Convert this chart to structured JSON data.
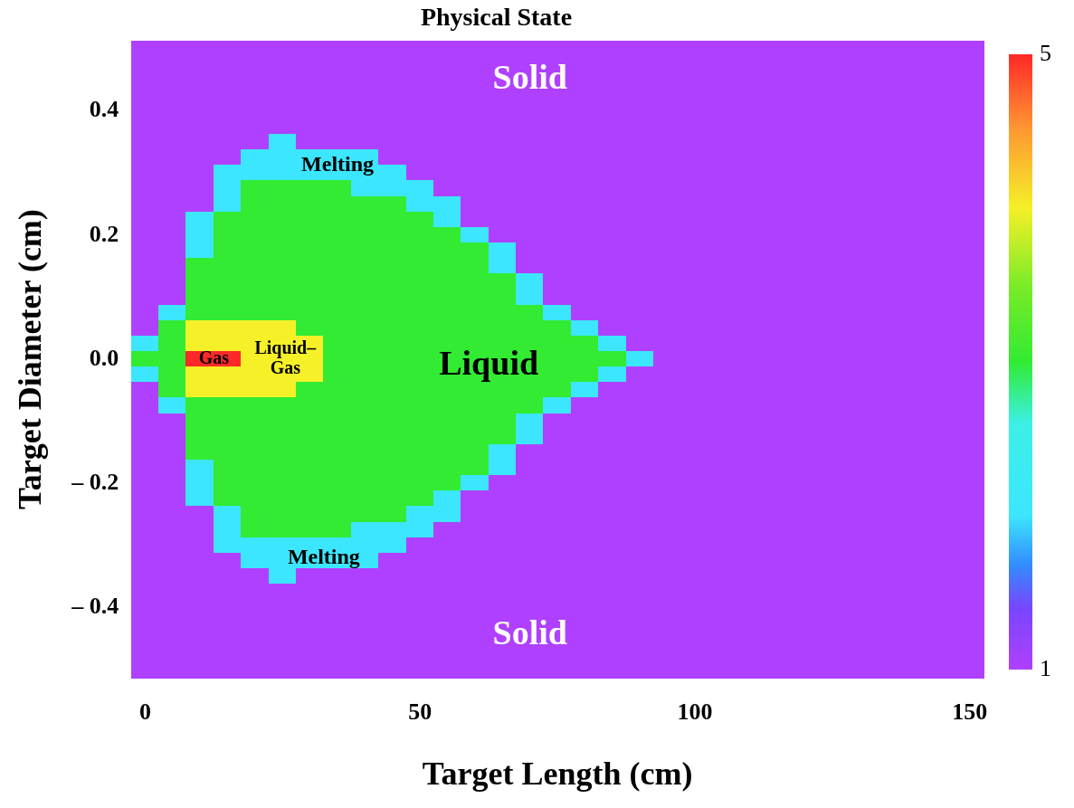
{
  "chart_data": {
    "type": "heatmap",
    "title": "Physical State",
    "xlabel": "Target Length (cm)",
    "ylabel": "Target Diameter (cm)",
    "categories": [
      "0",
      null,
      null,
      null,
      null,
      null,
      null,
      null,
      null,
      null,
      "50",
      null,
      null,
      null,
      null,
      null,
      null,
      null,
      null,
      null,
      "100",
      null,
      null,
      null,
      null,
      null,
      null,
      null,
      null,
      null,
      "150"
    ],
    "y_categories": [
      null,
      null,
      null,
      null,
      "0.4",
      null,
      null,
      null,
      null,
      null,
      null,
      null,
      "0.2",
      null,
      null,
      null,
      null,
      null,
      null,
      null,
      "0.0",
      null,
      null,
      null,
      null,
      null,
      null,
      null,
      "– 0.2",
      null,
      null,
      null,
      null,
      null,
      null,
      null,
      "– 0.4",
      null,
      null,
      null,
      null
    ],
    "clim": [
      1,
      5
    ],
    "cticks": [
      1,
      5
    ],
    "cells": [
      [
        1,
        1,
        1,
        1,
        1,
        1,
        1,
        1,
        1,
        1,
        1,
        1,
        1,
        1,
        1,
        1,
        1,
        1,
        1,
        1,
        1,
        1,
        1,
        1,
        1,
        1,
        1,
        1,
        1,
        1,
        1
      ],
      [
        1,
        1,
        1,
        1,
        1,
        1,
        1,
        1,
        1,
        1,
        1,
        1,
        1,
        1,
        1,
        1,
        1,
        1,
        1,
        1,
        1,
        1,
        1,
        1,
        1,
        1,
        1,
        1,
        1,
        1,
        1
      ],
      [
        1,
        1,
        1,
        1,
        1,
        1,
        1,
        1,
        1,
        1,
        1,
        1,
        1,
        1,
        1,
        1,
        1,
        1,
        1,
        1,
        1,
        1,
        1,
        1,
        1,
        1,
        1,
        1,
        1,
        1,
        1
      ],
      [
        1,
        1,
        1,
        1,
        1,
        1,
        1,
        1,
        1,
        1,
        1,
        1,
        1,
        1,
        1,
        1,
        1,
        1,
        1,
        1,
        1,
        1,
        1,
        1,
        1,
        1,
        1,
        1,
        1,
        1,
        1
      ],
      [
        1,
        1,
        1,
        1,
        1,
        1,
        1,
        1,
        1,
        1,
        1,
        1,
        1,
        1,
        1,
        1,
        1,
        1,
        1,
        1,
        1,
        1,
        1,
        1,
        1,
        1,
        1,
        1,
        1,
        1,
        1
      ],
      [
        1,
        1,
        1,
        1,
        1,
        1,
        1,
        1,
        1,
        1,
        1,
        1,
        1,
        1,
        1,
        1,
        1,
        1,
        1,
        1,
        1,
        1,
        1,
        1,
        1,
        1,
        1,
        1,
        1,
        1,
        1
      ],
      [
        1,
        1,
        1,
        1,
        1,
        2,
        1,
        1,
        1,
        1,
        1,
        1,
        1,
        1,
        1,
        1,
        1,
        1,
        1,
        1,
        1,
        1,
        1,
        1,
        1,
        1,
        1,
        1,
        1,
        1,
        1
      ],
      [
        1,
        1,
        1,
        1,
        2,
        2,
        2,
        2,
        2,
        1,
        1,
        1,
        1,
        1,
        1,
        1,
        1,
        1,
        1,
        1,
        1,
        1,
        1,
        1,
        1,
        1,
        1,
        1,
        1,
        1,
        1
      ],
      [
        1,
        1,
        1,
        2,
        2,
        2,
        2,
        2,
        2,
        2,
        1,
        1,
        1,
        1,
        1,
        1,
        1,
        1,
        1,
        1,
        1,
        1,
        1,
        1,
        1,
        1,
        1,
        1,
        1,
        1,
        1
      ],
      [
        1,
        1,
        1,
        2,
        3,
        3,
        3,
        3,
        2,
        2,
        2,
        1,
        1,
        1,
        1,
        1,
        1,
        1,
        1,
        1,
        1,
        1,
        1,
        1,
        1,
        1,
        1,
        1,
        1,
        1,
        1
      ],
      [
        1,
        1,
        1,
        2,
        3,
        3,
        3,
        3,
        3,
        3,
        2,
        2,
        1,
        1,
        1,
        1,
        1,
        1,
        1,
        1,
        1,
        1,
        1,
        1,
        1,
        1,
        1,
        1,
        1,
        1,
        1
      ],
      [
        1,
        1,
        2,
        3,
        3,
        3,
        3,
        3,
        3,
        3,
        3,
        2,
        1,
        1,
        1,
        1,
        1,
        1,
        1,
        1,
        1,
        1,
        1,
        1,
        1,
        1,
        1,
        1,
        1,
        1,
        1
      ],
      [
        1,
        1,
        2,
        3,
        3,
        3,
        3,
        3,
        3,
        3,
        3,
        3,
        2,
        1,
        1,
        1,
        1,
        1,
        1,
        1,
        1,
        1,
        1,
        1,
        1,
        1,
        1,
        1,
        1,
        1,
        1
      ],
      [
        1,
        1,
        2,
        3,
        3,
        3,
        3,
        3,
        3,
        3,
        3,
        3,
        3,
        2,
        1,
        1,
        1,
        1,
        1,
        1,
        1,
        1,
        1,
        1,
        1,
        1,
        1,
        1,
        1,
        1,
        1
      ],
      [
        1,
        1,
        3,
        3,
        3,
        3,
        3,
        3,
        3,
        3,
        3,
        3,
        3,
        2,
        1,
        1,
        1,
        1,
        1,
        1,
        1,
        1,
        1,
        1,
        1,
        1,
        1,
        1,
        1,
        1,
        1
      ],
      [
        1,
        1,
        3,
        3,
        3,
        3,
        3,
        3,
        3,
        3,
        3,
        3,
        3,
        3,
        2,
        1,
        1,
        1,
        1,
        1,
        1,
        1,
        1,
        1,
        1,
        1,
        1,
        1,
        1,
        1,
        1
      ],
      [
        1,
        1,
        3,
        3,
        3,
        3,
        3,
        3,
        3,
        3,
        3,
        3,
        3,
        3,
        2,
        1,
        1,
        1,
        1,
        1,
        1,
        1,
        1,
        1,
        1,
        1,
        1,
        1,
        1,
        1,
        1
      ],
      [
        1,
        2,
        3,
        3,
        3,
        3,
        3,
        3,
        3,
        3,
        3,
        3,
        3,
        3,
        3,
        2,
        1,
        1,
        1,
        1,
        1,
        1,
        1,
        1,
        1,
        1,
        1,
        1,
        1,
        1,
        1
      ],
      [
        1,
        3,
        4,
        4,
        4,
        4,
        3,
        3,
        3,
        3,
        3,
        3,
        3,
        3,
        3,
        3,
        2,
        1,
        1,
        1,
        1,
        1,
        1,
        1,
        1,
        1,
        1,
        1,
        1,
        1,
        1
      ],
      [
        2,
        3,
        4,
        4,
        4,
        4,
        4,
        3,
        3,
        3,
        3,
        3,
        3,
        3,
        3,
        3,
        3,
        2,
        1,
        1,
        1,
        1,
        1,
        1,
        1,
        1,
        1,
        1,
        1,
        1,
        1
      ],
      [
        3,
        3,
        5,
        5,
        4,
        4,
        4,
        3,
        3,
        3,
        3,
        3,
        3,
        3,
        3,
        3,
        3,
        3,
        2,
        1,
        1,
        1,
        1,
        1,
        1,
        1,
        1,
        1,
        1,
        1,
        1
      ],
      [
        2,
        3,
        4,
        4,
        4,
        4,
        4,
        3,
        3,
        3,
        3,
        3,
        3,
        3,
        3,
        3,
        3,
        2,
        1,
        1,
        1,
        1,
        1,
        1,
        1,
        1,
        1,
        1,
        1,
        1,
        1
      ],
      [
        1,
        3,
        4,
        4,
        4,
        4,
        3,
        3,
        3,
        3,
        3,
        3,
        3,
        3,
        3,
        3,
        2,
        1,
        1,
        1,
        1,
        1,
        1,
        1,
        1,
        1,
        1,
        1,
        1,
        1,
        1
      ],
      [
        1,
        2,
        3,
        3,
        3,
        3,
        3,
        3,
        3,
        3,
        3,
        3,
        3,
        3,
        3,
        2,
        1,
        1,
        1,
        1,
        1,
        1,
        1,
        1,
        1,
        1,
        1,
        1,
        1,
        1,
        1
      ],
      [
        1,
        1,
        3,
        3,
        3,
        3,
        3,
        3,
        3,
        3,
        3,
        3,
        3,
        3,
        2,
        1,
        1,
        1,
        1,
        1,
        1,
        1,
        1,
        1,
        1,
        1,
        1,
        1,
        1,
        1,
        1
      ],
      [
        1,
        1,
        3,
        3,
        3,
        3,
        3,
        3,
        3,
        3,
        3,
        3,
        3,
        3,
        2,
        1,
        1,
        1,
        1,
        1,
        1,
        1,
        1,
        1,
        1,
        1,
        1,
        1,
        1,
        1,
        1
      ],
      [
        1,
        1,
        3,
        3,
        3,
        3,
        3,
        3,
        3,
        3,
        3,
        3,
        3,
        2,
        1,
        1,
        1,
        1,
        1,
        1,
        1,
        1,
        1,
        1,
        1,
        1,
        1,
        1,
        1,
        1,
        1
      ],
      [
        1,
        1,
        2,
        3,
        3,
        3,
        3,
        3,
        3,
        3,
        3,
        3,
        3,
        2,
        1,
        1,
        1,
        1,
        1,
        1,
        1,
        1,
        1,
        1,
        1,
        1,
        1,
        1,
        1,
        1,
        1
      ],
      [
        1,
        1,
        2,
        3,
        3,
        3,
        3,
        3,
        3,
        3,
        3,
        3,
        2,
        1,
        1,
        1,
        1,
        1,
        1,
        1,
        1,
        1,
        1,
        1,
        1,
        1,
        1,
        1,
        1,
        1,
        1
      ],
      [
        1,
        1,
        2,
        3,
        3,
        3,
        3,
        3,
        3,
        3,
        3,
        2,
        1,
        1,
        1,
        1,
        1,
        1,
        1,
        1,
        1,
        1,
        1,
        1,
        1,
        1,
        1,
        1,
        1,
        1,
        1
      ],
      [
        1,
        1,
        1,
        2,
        3,
        3,
        3,
        3,
        3,
        3,
        2,
        2,
        1,
        1,
        1,
        1,
        1,
        1,
        1,
        1,
        1,
        1,
        1,
        1,
        1,
        1,
        1,
        1,
        1,
        1,
        1
      ],
      [
        1,
        1,
        1,
        2,
        3,
        3,
        3,
        3,
        2,
        2,
        2,
        1,
        1,
        1,
        1,
        1,
        1,
        1,
        1,
        1,
        1,
        1,
        1,
        1,
        1,
        1,
        1,
        1,
        1,
        1,
        1
      ],
      [
        1,
        1,
        1,
        2,
        2,
        2,
        2,
        2,
        2,
        2,
        1,
        1,
        1,
        1,
        1,
        1,
        1,
        1,
        1,
        1,
        1,
        1,
        1,
        1,
        1,
        1,
        1,
        1,
        1,
        1,
        1
      ],
      [
        1,
        1,
        1,
        1,
        2,
        2,
        2,
        2,
        2,
        1,
        1,
        1,
        1,
        1,
        1,
        1,
        1,
        1,
        1,
        1,
        1,
        1,
        1,
        1,
        1,
        1,
        1,
        1,
        1,
        1,
        1
      ],
      [
        1,
        1,
        1,
        1,
        1,
        2,
        1,
        1,
        1,
        1,
        1,
        1,
        1,
        1,
        1,
        1,
        1,
        1,
        1,
        1,
        1,
        1,
        1,
        1,
        1,
        1,
        1,
        1,
        1,
        1,
        1
      ],
      [
        1,
        1,
        1,
        1,
        1,
        1,
        1,
        1,
        1,
        1,
        1,
        1,
        1,
        1,
        1,
        1,
        1,
        1,
        1,
        1,
        1,
        1,
        1,
        1,
        1,
        1,
        1,
        1,
        1,
        1,
        1
      ],
      [
        1,
        1,
        1,
        1,
        1,
        1,
        1,
        1,
        1,
        1,
        1,
        1,
        1,
        1,
        1,
        1,
        1,
        1,
        1,
        1,
        1,
        1,
        1,
        1,
        1,
        1,
        1,
        1,
        1,
        1,
        1
      ],
      [
        1,
        1,
        1,
        1,
        1,
        1,
        1,
        1,
        1,
        1,
        1,
        1,
        1,
        1,
        1,
        1,
        1,
        1,
        1,
        1,
        1,
        1,
        1,
        1,
        1,
        1,
        1,
        1,
        1,
        1,
        1
      ],
      [
        1,
        1,
        1,
        1,
        1,
        1,
        1,
        1,
        1,
        1,
        1,
        1,
        1,
        1,
        1,
        1,
        1,
        1,
        1,
        1,
        1,
        1,
        1,
        1,
        1,
        1,
        1,
        1,
        1,
        1,
        1
      ],
      [
        1,
        1,
        1,
        1,
        1,
        1,
        1,
        1,
        1,
        1,
        1,
        1,
        1,
        1,
        1,
        1,
        1,
        1,
        1,
        1,
        1,
        1,
        1,
        1,
        1,
        1,
        1,
        1,
        1,
        1,
        1
      ],
      [
        1,
        1,
        1,
        1,
        1,
        1,
        1,
        1,
        1,
        1,
        1,
        1,
        1,
        1,
        1,
        1,
        1,
        1,
        1,
        1,
        1,
        1,
        1,
        1,
        1,
        1,
        1,
        1,
        1,
        1,
        1
      ]
    ],
    "annotations": [
      "Solid",
      "Melting",
      "Gas",
      "Liquid–Gas",
      "Liquid",
      "Melting",
      "Solid"
    ]
  }
}
